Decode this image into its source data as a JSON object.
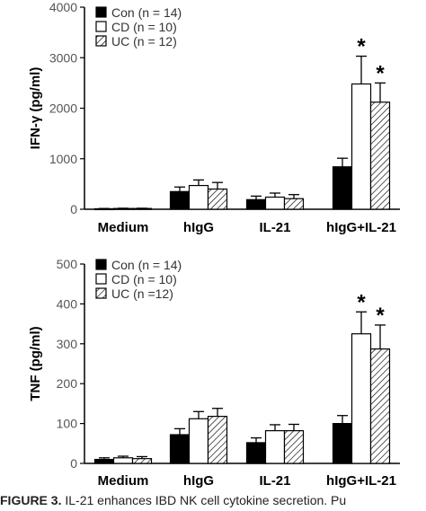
{
  "colors": {
    "con": "#000000",
    "cd": "#ffffff",
    "uc_hatch": "#000000",
    "axis": "#000000"
  },
  "chart_data": [
    {
      "type": "bar",
      "ylabel": "IFN-γ (pg/ml)",
      "ylim": [
        0,
        4000
      ],
      "yticks": [
        "0",
        "1000",
        "2000",
        "3000",
        "4000"
      ],
      "categories": [
        "Medium",
        "hIgG",
        "IL-21",
        "hIgG+IL-21"
      ],
      "series": [
        {
          "name": "Con (n = 14)",
          "values": [
            10,
            350,
            190,
            840
          ],
          "errors": [
            5,
            90,
            70,
            170
          ]
        },
        {
          "name": "CD (n = 10)",
          "values": [
            15,
            470,
            240,
            2480
          ],
          "errors": [
            5,
            110,
            80,
            550
          ]
        },
        {
          "name": "UC (n = 12)",
          "values": [
            15,
            400,
            210,
            2120
          ],
          "errors": [
            5,
            130,
            80,
            380
          ]
        }
      ],
      "significance": [
        {
          "category": 3,
          "series": 1,
          "mark": "*"
        },
        {
          "category": 3,
          "series": 2,
          "mark": "*"
        }
      ],
      "legend": "top-left"
    },
    {
      "type": "bar",
      "ylabel": "TNF (pg/ml)",
      "ylim": [
        0,
        500
      ],
      "yticks": [
        "0",
        "100",
        "200",
        "300",
        "400",
        "500"
      ],
      "categories": [
        "Medium",
        "hIgG",
        "IL-21",
        "hIgG+IL-21"
      ],
      "series": [
        {
          "name": "Con (n = 14)",
          "values": [
            10,
            72,
            52,
            100
          ],
          "errors": [
            4,
            15,
            12,
            20
          ]
        },
        {
          "name": "CD (n = 10)",
          "values": [
            14,
            112,
            82,
            325
          ],
          "errors": [
            4,
            18,
            15,
            55
          ]
        },
        {
          "name": "UC (n =12)",
          "values": [
            12,
            118,
            82,
            287
          ],
          "errors": [
            5,
            20,
            16,
            60
          ]
        }
      ],
      "significance": [
        {
          "category": 3,
          "series": 1,
          "mark": "*"
        },
        {
          "category": 3,
          "series": 2,
          "mark": "*"
        }
      ],
      "legend": "top-left"
    }
  ],
  "caption": {
    "label": "FIGURE 3.",
    "text": "IL-21 enhances IBD NK cell cytokine secretion. Pu"
  }
}
